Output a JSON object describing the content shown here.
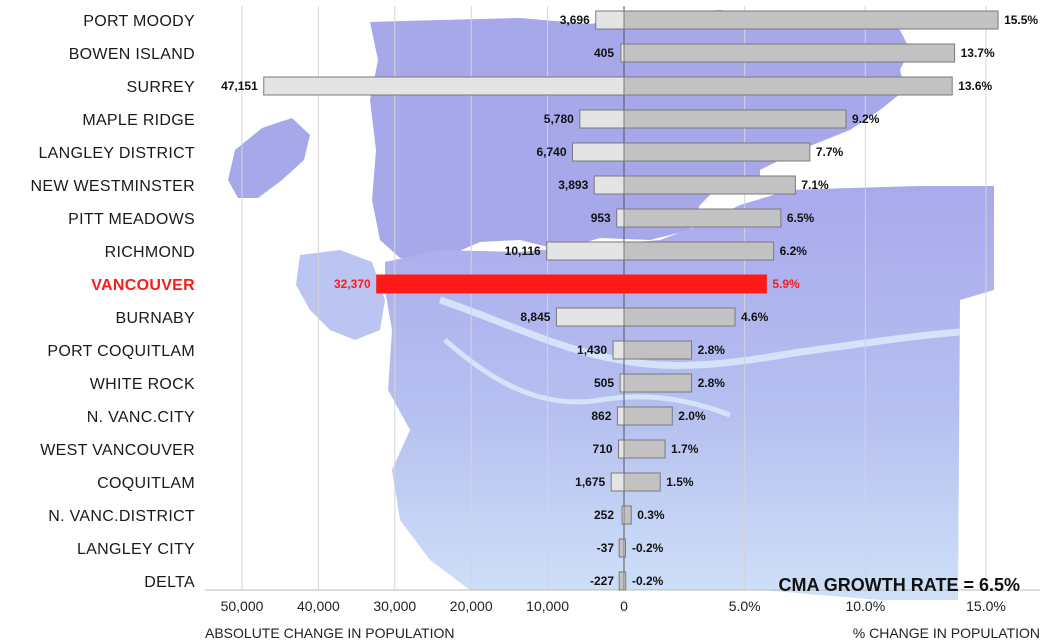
{
  "chart_data": {
    "type": "bar",
    "categories": [
      "PORT MOODY",
      "BOWEN ISLAND",
      "SURREY",
      "MAPLE RIDGE",
      "LANGLEY DISTRICT",
      "NEW WESTMINSTER",
      "PITT MEADOWS",
      "RICHMOND",
      "VANCOUVER",
      "BURNABY",
      "PORT COQUITLAM",
      "WHITE ROCK",
      "N. VANC.CITY",
      "WEST VANCOUVER",
      "COQUITLAM",
      "N. VANC.DISTRICT",
      "LANGLEY CITY",
      "DELTA"
    ],
    "series": [
      {
        "values": [
          3696,
          405,
          47151,
          5780,
          6740,
          3893,
          953,
          10116,
          32370,
          8845,
          1430,
          505,
          862,
          710,
          1675,
          252,
          -37,
          -227
        ],
        "labels": [
          "3,696",
          "405",
          "47,151",
          "5,780",
          "6,740",
          "3,893",
          "953",
          "10,116",
          "32,370",
          "8,845",
          "1,430",
          "505",
          "862",
          "710",
          "1,675",
          "252",
          "-37",
          "-227"
        ]
      },
      {
        "values": [
          15.5,
          13.7,
          13.6,
          9.2,
          7.7,
          7.1,
          6.5,
          6.2,
          5.9,
          4.6,
          2.8,
          2.8,
          2.0,
          1.7,
          1.5,
          0.3,
          -0.2,
          -0.2
        ],
        "labels": [
          "15.5%",
          "13.7%",
          "13.6%",
          "9.2%",
          "7.7%",
          "7.1%",
          "6.5%",
          "6.2%",
          "5.9%",
          "4.6%",
          "2.8%",
          "2.8%",
          "2.0%",
          "1.7%",
          "1.5%",
          "0.3%",
          "-0.2%",
          "-0.2%"
        ]
      }
    ],
    "highlight": "VANCOUVER",
    "left_axis": {
      "title": "ABSOLUTE CHANGE IN POPULATION",
      "range": [
        50000,
        0
      ],
      "ticks": [
        "50,000",
        "40,000",
        "30,000",
        "20,000",
        "10,000",
        "0"
      ]
    },
    "right_axis": {
      "title": "% CHANGE IN POPULATION",
      "range": [
        0,
        15
      ],
      "ticks": [
        "5.0%",
        "10.0%",
        "15.0%"
      ]
    },
    "annotation": "CMA GROWTH RATE = 6.5%",
    "grid": true,
    "background": "map of the Vancouver region"
  },
  "colors": {
    "highlight": "#ff1a1a",
    "bar_fill": "#c2c2c2",
    "abs_bar_fill": "#e4e4e4",
    "bar_stroke": "#7a7a7a",
    "map_dark": "#a6a8ea",
    "map_light": "#c9d8f6"
  }
}
